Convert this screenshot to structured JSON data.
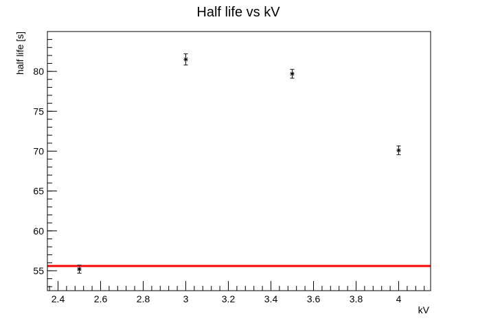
{
  "chart_data": {
    "type": "scatter",
    "title": "Half life vs kV",
    "xlabel": "kV",
    "ylabel": "half life [s]",
    "xlim": [
      2.35,
      4.15
    ],
    "ylim": [
      52.5,
      85.0
    ],
    "grid": false,
    "x_ticks": [
      2.4,
      2.6,
      2.8,
      3.0,
      3.2,
      3.4,
      3.6,
      3.8,
      4.0
    ],
    "x_tick_labels": [
      "2.4",
      "2.6",
      "2.8",
      "3",
      "3.2",
      "3.4",
      "3.6",
      "3.8",
      "4"
    ],
    "y_ticks": [
      55,
      60,
      65,
      70,
      75,
      80
    ],
    "y_tick_labels": [
      "55",
      "60",
      "65",
      "70",
      "75",
      "80"
    ],
    "x_minor_step": 0.04,
    "y_minor_step": 1,
    "points": [
      {
        "x": 2.5,
        "y": 55.2,
        "yerr": 0.5,
        "xerr": 0.01
      },
      {
        "x": 3.0,
        "y": 81.5,
        "yerr": 0.7,
        "xerr": 0.01
      },
      {
        "x": 3.5,
        "y": 79.7,
        "yerr": 0.55,
        "xerr": 0.01
      },
      {
        "x": 4.0,
        "y": 70.1,
        "yerr": 0.55,
        "xerr": 0.01
      }
    ],
    "fit_line": {
      "y": 55.6,
      "color": "#ff0000"
    },
    "marker_color": "#000000"
  }
}
